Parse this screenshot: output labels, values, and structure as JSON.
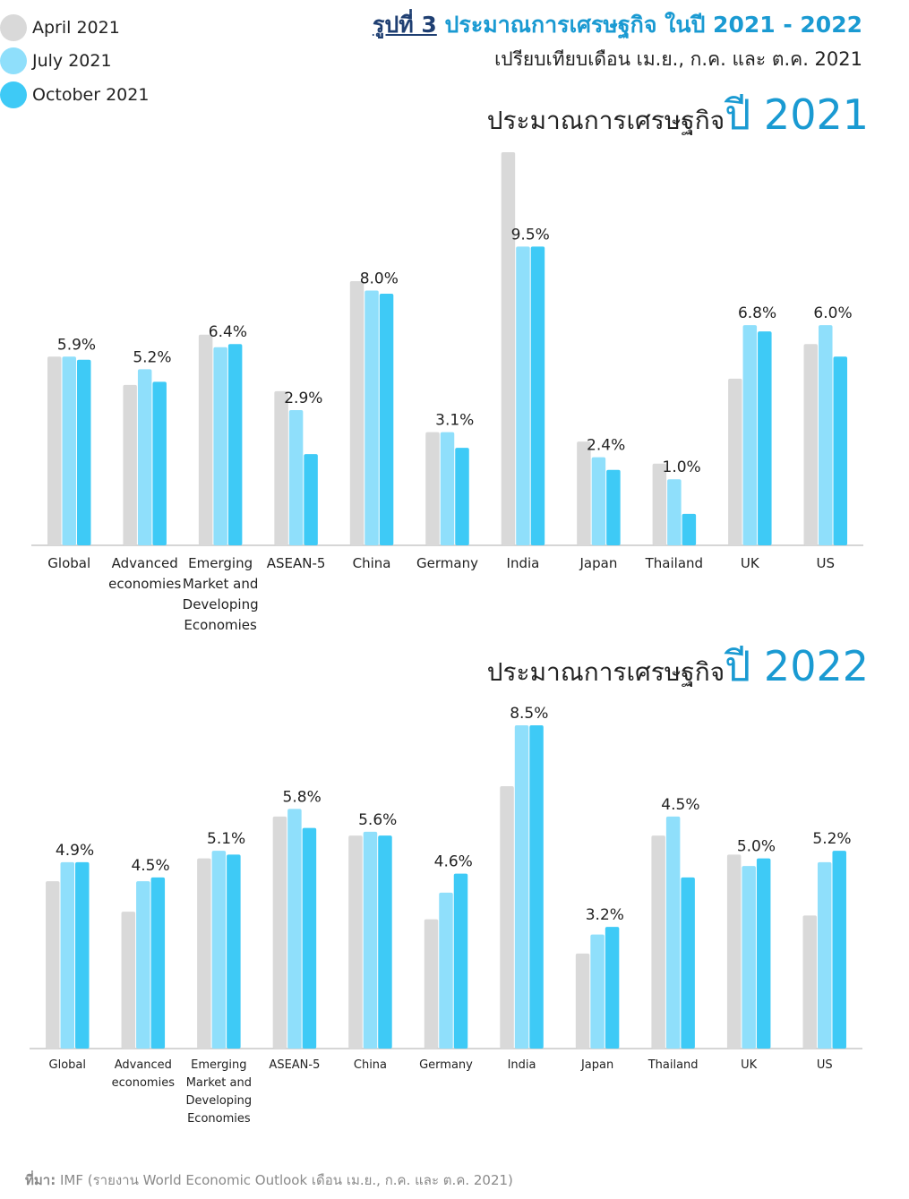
{
  "legend": {
    "items": [
      {
        "label": "April 2021",
        "color": "#d9d9d9"
      },
      {
        "label": "July 2021",
        "color": "#8fdffb"
      },
      {
        "label": "October 2021",
        "color": "#3ecaf6"
      }
    ]
  },
  "figure": {
    "number": "รูปที่ 3",
    "title": "ประมาณการเศรษฐกิจ ในปี 2021 - 2022",
    "subtitle": "เปรียบเทียบเดือน เม.ย., ก.ค. และ ต.ค. 2021"
  },
  "panels": [
    {
      "title_text": "ประมาณการเศรษฐกิจ",
      "title_year": "ปี 2021"
    },
    {
      "title_text": "ประมาณการเศรษฐกิจ",
      "title_year": "ปี 2022"
    }
  ],
  "source": {
    "label": "ที่มา:",
    "text": " IMF (รายงาน World Economic Outlook  เดือน เม.ย., ก.ค. และ ต.ค. 2021)"
  },
  "chart_data": [
    {
      "type": "bar",
      "title": "ประมาณการเศรษฐกิจปี 2021",
      "categories": [
        [
          "Global"
        ],
        [
          "Advanced",
          "economies"
        ],
        [
          "Emerging",
          "Market and",
          "Developing",
          "Economies"
        ],
        [
          "ASEAN-5"
        ],
        [
          "China"
        ],
        [
          "Germany"
        ],
        [
          "India"
        ],
        [
          "Japan"
        ],
        [
          "Thailand"
        ],
        [
          "UK"
        ],
        [
          "US"
        ]
      ],
      "series": [
        {
          "name": "April 2021",
          "color": "#d9d9d9",
          "values": [
            6.0,
            5.1,
            6.7,
            4.9,
            8.4,
            3.6,
            12.5,
            3.3,
            2.6,
            5.3,
            6.4
          ]
        },
        {
          "name": "July 2021",
          "color": "#8fdffb",
          "values": [
            6.0,
            5.6,
            6.3,
            4.3,
            8.1,
            3.6,
            9.5,
            2.8,
            2.1,
            7.0,
            7.0
          ]
        },
        {
          "name": "October 2021",
          "color": "#3ecaf6",
          "values": [
            5.9,
            5.2,
            6.4,
            2.9,
            8.0,
            3.1,
            9.5,
            2.4,
            1.0,
            6.8,
            6.0
          ]
        }
      ],
      "data_labels": [
        "5.9%",
        "5.2%",
        "6.4%",
        "2.9%",
        "8.0%",
        "3.1%",
        "9.5%",
        "2.4%",
        "1.0%",
        "6.8%",
        "6.0%"
      ],
      "ylim": [
        0,
        12.5
      ],
      "grid": false
    },
    {
      "type": "bar",
      "title": "ประมาณการเศรษฐกิจปี 2022",
      "categories": [
        [
          "Global"
        ],
        [
          "Advanced",
          "economies"
        ],
        [
          "Emerging",
          "Market and",
          "Developing",
          "Economies"
        ],
        [
          "ASEAN-5"
        ],
        [
          "China"
        ],
        [
          "Germany"
        ],
        [
          "India"
        ],
        [
          "Japan"
        ],
        [
          "Thailand"
        ],
        [
          "UK"
        ],
        [
          "US"
        ]
      ],
      "series": [
        {
          "name": "April 2021",
          "color": "#d9d9d9",
          "values": [
            4.4,
            3.6,
            5.0,
            6.1,
            5.6,
            3.4,
            6.9,
            2.5,
            5.6,
            5.1,
            3.5
          ]
        },
        {
          "name": "July 2021",
          "color": "#8fdffb",
          "values": [
            4.9,
            4.4,
            5.2,
            6.3,
            5.7,
            4.1,
            8.5,
            3.0,
            6.1,
            4.8,
            4.9
          ]
        },
        {
          "name": "October 2021",
          "color": "#3ecaf6",
          "values": [
            4.9,
            4.5,
            5.1,
            5.8,
            5.6,
            4.6,
            8.5,
            3.2,
            4.5,
            5.0,
            5.2
          ]
        }
      ],
      "data_labels": [
        "4.9%",
        "4.5%",
        "5.1%",
        "5.8%",
        "5.6%",
        "4.6%",
        "8.5%",
        "3.2%",
        "4.5%",
        "5.0%",
        "5.2%"
      ],
      "ylim": [
        0,
        8.5
      ],
      "grid": false
    }
  ]
}
